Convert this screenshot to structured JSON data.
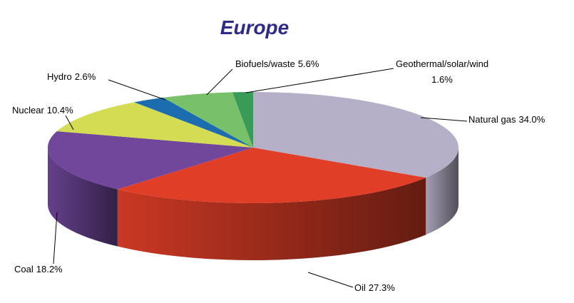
{
  "chart_data": {
    "type": "pie",
    "title": "Europe",
    "categories": [
      "Natural gas",
      "Oil",
      "Coal",
      "Nuclear",
      "Hydro",
      "Biofuels/waste",
      "Geothermal/solar/wind"
    ],
    "values": [
      34.0,
      27.3,
      18.2,
      10.4,
      2.6,
      5.6,
      1.6
    ],
    "value_labels": [
      "34.0%",
      "27.3%",
      "18.2%",
      "10.4%",
      "2.6%",
      "5.6%",
      "1.6%"
    ],
    "colors": [
      "#b5afc7",
      "#e03e27",
      "#70479b",
      "#d3dc52",
      "#1b6db0",
      "#79c06b",
      "#3a9a58"
    ]
  }
}
